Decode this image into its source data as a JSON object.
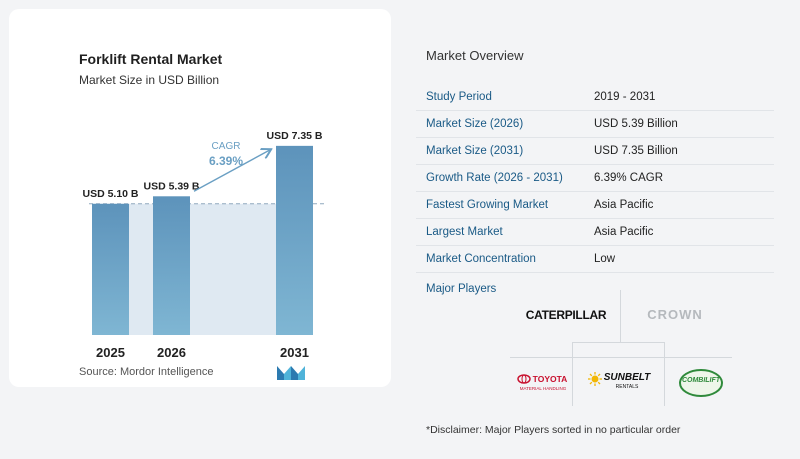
{
  "chart_data": {
    "type": "bar",
    "title": "Forklift Rental Market",
    "subtitle": "Market Size in USD Billion",
    "categories": [
      "2025",
      "2026",
      "2031"
    ],
    "values": [
      5.1,
      5.39,
      7.35
    ],
    "value_labels": [
      "USD 5.10 B",
      "USD 5.39 B",
      "USD 7.35 B"
    ],
    "ylim": [
      0,
      7.5
    ],
    "xlabel": "",
    "ylabel": "",
    "cagr_label": "CAGR",
    "cagr_value": "6.39%",
    "bar_color": "#6a9fc3",
    "bar_color_top": "#5d93bb",
    "bar_color_bottom": "#7fb6d3",
    "shade_color": "#dfe9f2",
    "grid": false
  },
  "source": "Source:  Mordor Intelligence",
  "overview": {
    "title": "Market Overview",
    "rows": [
      {
        "label": "Study Period",
        "value": "2019 - 2031"
      },
      {
        "label": "Market Size (2026)",
        "value": "USD 5.39 Billion"
      },
      {
        "label": "Market Size (2031)",
        "value": "USD 7.35 Billion"
      },
      {
        "label": "Growth Rate (2026 - 2031)",
        "value": "6.39% CAGR"
      },
      {
        "label": "Fastest Growing Market",
        "value": "Asia Pacific"
      },
      {
        "label": "Largest Market",
        "value": "Asia Pacific"
      },
      {
        "label": "Market Concentration",
        "value": "Low"
      }
    ]
  },
  "players": {
    "title": "Major Players",
    "logos": [
      "CATERPILLAR",
      "CROWN",
      "TOYOTA",
      "SUNBELT",
      "COMBILIFT"
    ],
    "toyota_sub": "MATERIAL HANDLING",
    "sunbelt_sub": "RENTALS"
  },
  "disclaimer": "*Disclaimer: Major Players sorted in no particular order"
}
